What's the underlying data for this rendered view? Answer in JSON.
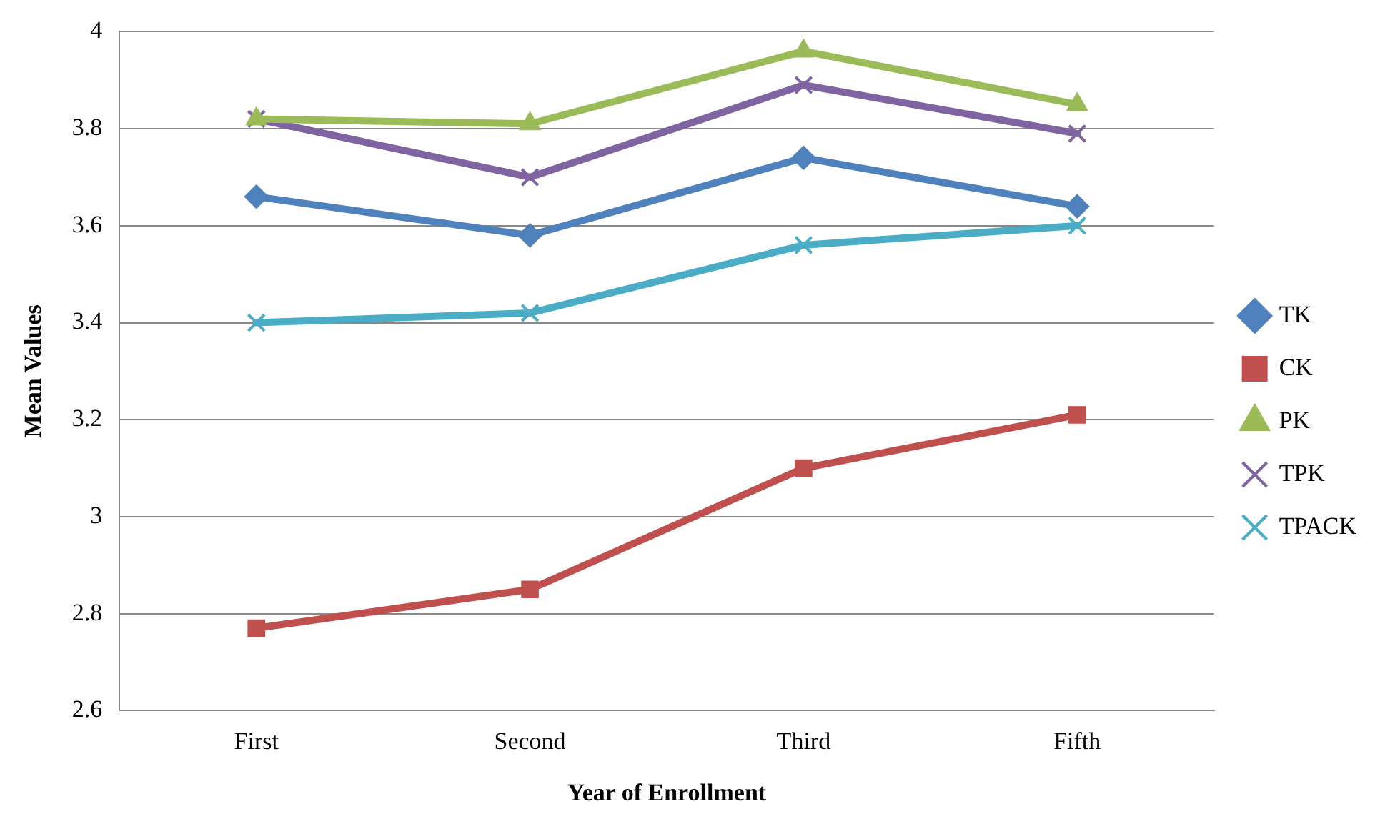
{
  "chart_data": {
    "type": "line",
    "xlabel": "Year of Enrollment",
    "ylabel": "Mean Values",
    "categories": [
      "First",
      "Second",
      "Third",
      "Fifth"
    ],
    "series": [
      {
        "name": "TK",
        "color": "#4f81bd",
        "marker": "diamond",
        "values": [
          3.66,
          3.58,
          3.74,
          3.64
        ]
      },
      {
        "name": "CK",
        "color": "#c0504d",
        "marker": "square",
        "values": [
          2.77,
          2.85,
          3.1,
          3.21
        ]
      },
      {
        "name": "PK",
        "color": "#9bbb59",
        "marker": "triangle",
        "values": [
          3.82,
          3.81,
          3.96,
          3.85
        ]
      },
      {
        "name": "TPK",
        "color": "#8064a2",
        "marker": "cross",
        "values": [
          3.82,
          3.7,
          3.89,
          3.79
        ]
      },
      {
        "name": "TPACK",
        "color": "#4bacc6",
        "marker": "cross",
        "values": [
          3.4,
          3.42,
          3.56,
          3.6
        ]
      }
    ],
    "ylim": [
      2.6,
      4
    ],
    "yticks": [
      2.6,
      2.8,
      3,
      3.2,
      3.4,
      3.6,
      3.8,
      4
    ],
    "grid": "y",
    "legend": "right"
  }
}
